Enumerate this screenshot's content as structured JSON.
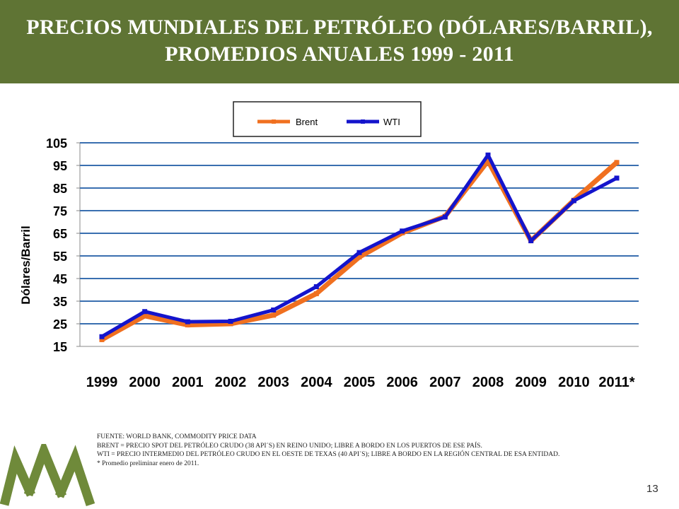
{
  "slide": {
    "title_line1": "PRECIOS MUNDIALES DEL PETRÓLEO (DÓLARES/BARRIL),",
    "title_line2": "PROMEDIOS ANUALES 1999 - 2011",
    "page_number": "13",
    "header_color": "#5f7434",
    "logo_color": "#6f8a3a",
    "logo_icon": "triple-peak-logo-icon"
  },
  "footnotes": [
    "FUENTE: WORLD BANK, COMMODITY PRICE DATA",
    "BRENT = PRECIO SPOT DEL PETRÓLEO CRUDO (38 API´S) EN REINO UNIDO; LIBRE A BORDO EN LOS PUERTOS DE ESE PAÍS.",
    "WTI = PRECIO INTERMEDIO DEL PETRÓLEO CRUDO EN EL OESTE DE TEXAS (40 API´S); LIBRE A BORDO EN LA REGIÓN CENTRAL DE ESA ENTIDAD.",
    " * Promedio preliminar enero de 2011."
  ],
  "chart_data": {
    "type": "line",
    "title": "",
    "xlabel": "",
    "ylabel": "Dólares/Barril",
    "categories": [
      "1999",
      "2000",
      "2001",
      "2002",
      "2003",
      "2004",
      "2005",
      "2006",
      "2007",
      "2008",
      "2009",
      "2010",
      "2011*"
    ],
    "y_ticks": [
      "105",
      "95",
      "85",
      "75",
      "65",
      "55",
      "45",
      "35",
      "25",
      "15"
    ],
    "ylim": [
      15,
      105
    ],
    "grid": true,
    "legend_position": "top-center",
    "series": [
      {
        "name": "Brent",
        "color": "#f07020",
        "values": [
          18,
          28.5,
          24.5,
          25,
          28.8,
          38.3,
          54.5,
          65.2,
          72.5,
          97,
          61.7,
          79.6,
          96.3
        ]
      },
      {
        "name": "WTI",
        "color": "#1414cc",
        "values": [
          19.3,
          30.4,
          25.9,
          26.1,
          31.1,
          41.4,
          56.5,
          66,
          72.2,
          99.6,
          61.7,
          79.4,
          89.4
        ]
      }
    ]
  }
}
